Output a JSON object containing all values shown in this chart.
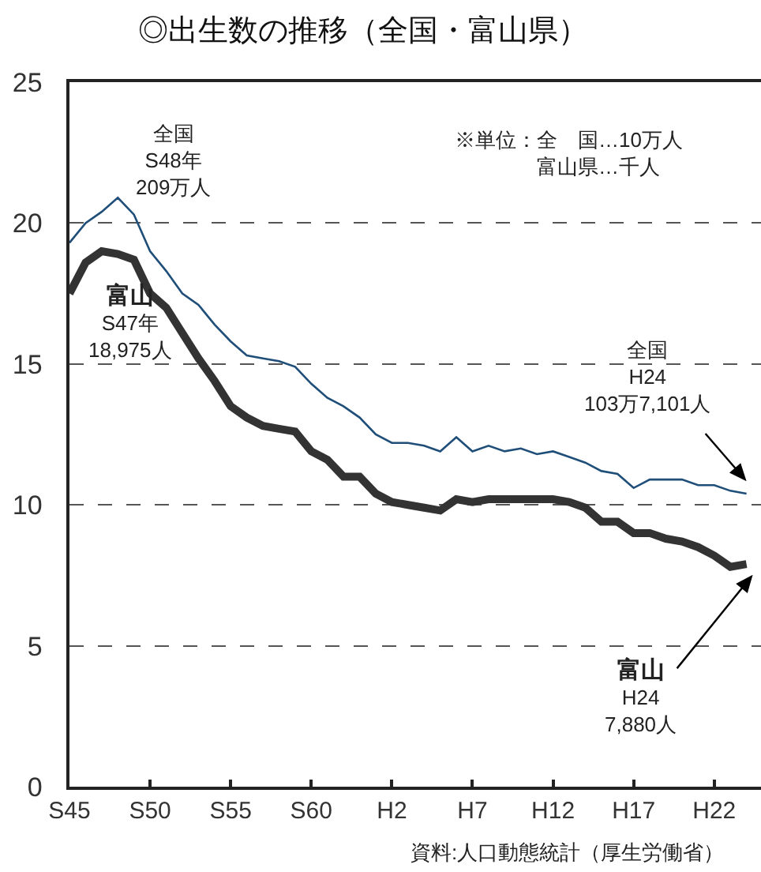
{
  "chart_data": {
    "type": "line",
    "title": "◎出生数の推移（全国・富山県）",
    "categories": [
      "S45",
      null,
      null,
      null,
      null,
      "S50",
      null,
      null,
      null,
      null,
      "S55",
      null,
      null,
      null,
      null,
      "S60",
      null,
      null,
      null,
      null,
      "H2",
      null,
      null,
      null,
      null,
      "H7",
      null,
      null,
      null,
      null,
      "H12",
      null,
      null,
      null,
      null,
      "H17",
      null,
      null,
      null,
      null,
      "H22",
      null,
      null
    ],
    "ylim": [
      0,
      25
    ],
    "yticks": [
      0,
      5,
      10,
      15,
      20,
      25
    ],
    "grid": "y",
    "series": [
      {
        "color": "#1f4e79",
        "values": [
          19.3,
          20.0,
          20.4,
          20.9,
          20.3,
          19.0,
          18.3,
          17.5,
          17.1,
          16.4,
          15.8,
          15.3,
          15.2,
          15.1,
          14.9,
          14.3,
          13.8,
          13.5,
          13.1,
          12.5,
          12.2,
          12.2,
          12.1,
          11.9,
          12.4,
          11.9,
          12.1,
          11.9,
          12.0,
          11.8,
          11.9,
          11.7,
          11.5,
          11.2,
          11.1,
          10.6,
          10.9,
          10.9,
          10.9,
          10.7,
          10.7,
          10.5,
          10.4
        ]
      },
      {
        "color": "#333333",
        "values": [
          17.5,
          18.6,
          19.0,
          18.9,
          18.7,
          17.5,
          17.0,
          16.1,
          15.2,
          14.4,
          13.5,
          13.1,
          12.8,
          12.7,
          12.6,
          11.9,
          11.6,
          11.0,
          11.0,
          10.4,
          10.1,
          10.0,
          9.9,
          9.8,
          10.2,
          10.1,
          10.2,
          10.2,
          10.2,
          10.2,
          10.2,
          10.1,
          9.9,
          9.4,
          9.4,
          9.0,
          9.0,
          8.8,
          8.7,
          8.5,
          8.2,
          7.8,
          7.9
        ]
      }
    ],
    "annotations": [
      "全国\nS48年\n209万人",
      "富山\nS47年\n18,975人",
      "全国\nH24\n103万7,101人",
      "富山\nH24\n7,880人",
      "※単位：全　国…10万人",
      "富山県…千人",
      "資料:人口動態統計（厚生労働省）"
    ]
  }
}
